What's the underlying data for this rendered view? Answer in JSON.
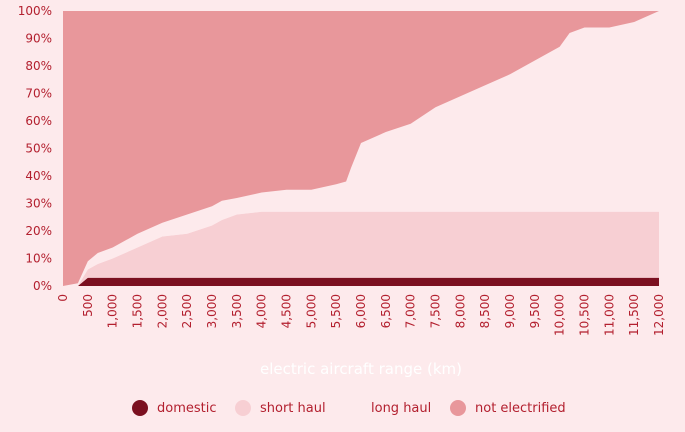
{
  "chart_data": {
    "type": "area",
    "stacked": true,
    "xlabel": "electric aircraft range (km)",
    "ylabel": "",
    "x_ticks": [
      "0",
      "500",
      "1,000",
      "1,500",
      "2,000",
      "2,500",
      "3,000",
      "3,500",
      "4,000",
      "4,500",
      "5,000",
      "5,500",
      "6,000",
      "6,500",
      "7,000",
      "7,500",
      "8,000",
      "8,500",
      "9,000",
      "9,500",
      "10,000",
      "10,500",
      "11,000",
      "11,500",
      "12,000"
    ],
    "y_ticks": [
      "0%",
      "10%",
      "20%",
      "30%",
      "40%",
      "50%",
      "60%",
      "70%",
      "80%",
      "90%",
      "100%"
    ],
    "xlim": [
      0,
      12000
    ],
    "ylim": [
      0,
      100
    ],
    "legend_position": "bottom",
    "colors": {
      "domestic": "#7b1020",
      "short_haul": "#f7cfd3",
      "long_haul": "#fdeaec",
      "not_electrified": "#e8979b",
      "text": "#b3202f",
      "xlabel": "#ffffff"
    },
    "x": [
      0,
      300,
      500,
      700,
      1000,
      1500,
      2000,
      2500,
      3000,
      3200,
      3500,
      4000,
      4500,
      5000,
      5500,
      5700,
      5800,
      6000,
      6500,
      7000,
      7500,
      8000,
      8500,
      9000,
      9500,
      10000,
      10200,
      10500,
      11000,
      11500,
      12000
    ],
    "series": [
      {
        "name": "domestic",
        "values": [
          0,
          0,
          3,
          3,
          3,
          3,
          3,
          3,
          3,
          3,
          3,
          3,
          3,
          3,
          3,
          3,
          3,
          3,
          3,
          3,
          3,
          3,
          3,
          3,
          3,
          3,
          3,
          3,
          3,
          3,
          3
        ]
      },
      {
        "name": "short haul",
        "values": [
          0,
          0,
          3,
          5,
          7,
          11,
          15,
          16,
          19,
          21,
          23,
          24,
          24,
          24,
          24,
          24,
          24,
          24,
          24,
          24,
          24,
          24,
          24,
          24,
          24,
          24,
          24,
          24,
          24,
          24,
          24
        ]
      },
      {
        "name": "long haul",
        "values": [
          0,
          1,
          3,
          4,
          4,
          5,
          5,
          7,
          7,
          7,
          6,
          7,
          8,
          8,
          10,
          11,
          16,
          25,
          29,
          32,
          38,
          42,
          46,
          50,
          55,
          60,
          65,
          67,
          67,
          69,
          73
        ]
      },
      {
        "name": "not electrified",
        "values": [
          100,
          99,
          91,
          88,
          86,
          81,
          77,
          74,
          71,
          69,
          68,
          66,
          65,
          65,
          63,
          62,
          57,
          48,
          44,
          41,
          35,
          31,
          27,
          23,
          18,
          13,
          8,
          6,
          6,
          4,
          0
        ]
      }
    ]
  },
  "legend": [
    {
      "label": "domestic"
    },
    {
      "label": "short haul"
    },
    {
      "label": "long haul"
    },
    {
      "label": "not electrified"
    }
  ]
}
